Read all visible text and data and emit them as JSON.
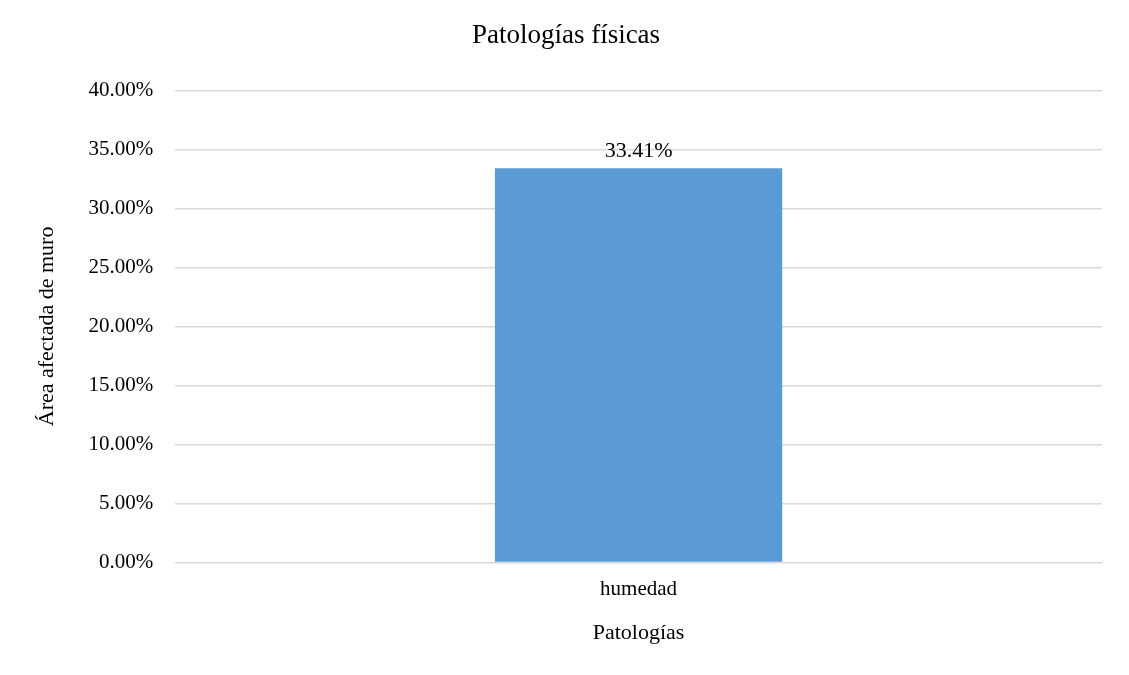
{
  "chart_data": {
    "type": "bar",
    "title": "Patologías físicas",
    "xlabel": "Patologías",
    "ylabel": "Área afectada de muro",
    "categories": [
      "humedad"
    ],
    "series": [
      {
        "color": "#5b9bd5",
        "values": [
          33.41
        ],
        "value_labels": [
          "33.41%"
        ]
      }
    ],
    "ylim": [
      0,
      40
    ],
    "yticks": [
      {
        "value": 0,
        "label": "0.00%"
      },
      {
        "value": 5,
        "label": "5.00%"
      },
      {
        "value": 10,
        "label": "10.00%"
      },
      {
        "value": 15,
        "label": "15.00%"
      },
      {
        "value": 20,
        "label": "20.00%"
      },
      {
        "value": 25,
        "label": "25.00%"
      },
      {
        "value": 30,
        "label": "30.00%"
      },
      {
        "value": 35,
        "label": "35.00%"
      },
      {
        "value": 40,
        "label": "40.00%"
      }
    ],
    "grid": "y",
    "legend": false
  }
}
